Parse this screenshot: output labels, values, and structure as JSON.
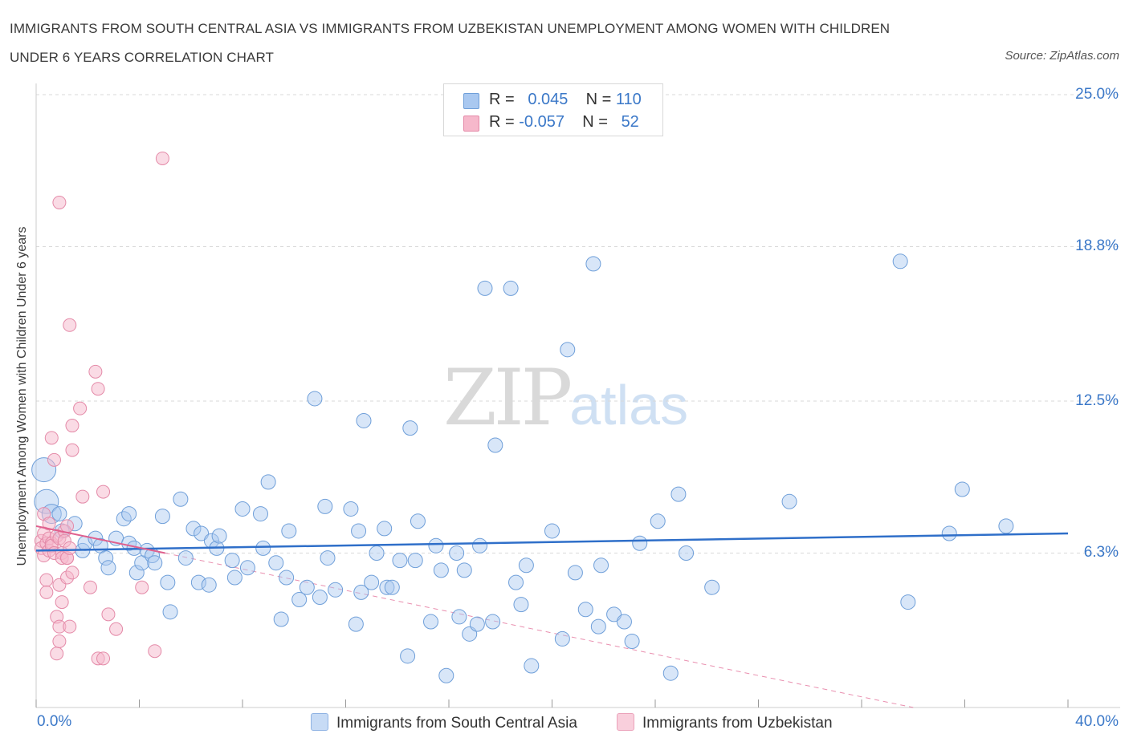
{
  "title": "IMMIGRANTS FROM SOUTH CENTRAL ASIA VS IMMIGRANTS FROM UZBEKISTAN UNEMPLOYMENT AMONG WOMEN WITH CHILDREN UNDER 6 YEARS CORRELATION CHART",
  "source": "Source: ZipAtlas.com",
  "watermark": {
    "zip": "ZIP",
    "atlas": "atlas"
  },
  "legend": {
    "rows": [
      {
        "r_label": "R =",
        "r_value": "0.045",
        "n_label": "N =",
        "n_value": "110",
        "color": "#a9c8f0"
      },
      {
        "r_label": "R =",
        "r_value": "-0.057",
        "n_label": "N =",
        "n_value": "52",
        "color": "#f6b8cb"
      }
    ]
  },
  "colors": {
    "blue_fill": "#a9c8f0",
    "blue_stroke": "#6f9fd9",
    "blue_line": "#2f6fc9",
    "pink_fill": "#f6b8cb",
    "pink_stroke": "#e48aa8",
    "pink_line": "#e0608e",
    "grid": "#d9d9d9",
    "axis_label": "#3b78c8"
  },
  "chart_data": {
    "type": "scatter",
    "title": "IMMIGRANTS FROM SOUTH CENTRAL ASIA VS IMMIGRANTS FROM UZBEKISTAN UNEMPLOYMENT AMONG WOMEN WITH CHILDREN UNDER 6 YEARS CORRELATION CHART",
    "xlabel": "",
    "ylabel": "Unemployment Among Women with Children Under 6 years",
    "xlim": [
      0,
      40
    ],
    "ylim": [
      0,
      25
    ],
    "x_tick_labels": [
      "0.0%",
      "40.0%"
    ],
    "y_ticks": [
      6.3,
      12.5,
      18.8,
      25.0
    ],
    "y_tick_labels": [
      "6.3%",
      "12.5%",
      "18.8%",
      "25.0%"
    ],
    "grid": true,
    "legend_position": "top-center",
    "series": [
      {
        "name": "Immigrants from South Central Asia",
        "R": 0.045,
        "N": 110,
        "trend": {
          "x": [
            0,
            40
          ],
          "y": [
            6.4,
            7.1
          ],
          "style": "solid"
        },
        "points": [
          [
            0.3,
            9.7
          ],
          [
            0.4,
            8.4
          ],
          [
            0.6,
            7.9
          ],
          [
            0.9,
            7.9
          ],
          [
            1.0,
            7.2
          ],
          [
            1.5,
            7.5
          ],
          [
            1.8,
            6.4
          ],
          [
            1.9,
            6.7
          ],
          [
            2.3,
            6.9
          ],
          [
            2.5,
            6.6
          ],
          [
            2.7,
            6.1
          ],
          [
            2.8,
            5.7
          ],
          [
            3.1,
            6.9
          ],
          [
            3.4,
            7.7
          ],
          [
            3.6,
            6.7
          ],
          [
            3.6,
            7.9
          ],
          [
            3.8,
            6.5
          ],
          [
            3.9,
            5.5
          ],
          [
            4.1,
            5.9
          ],
          [
            4.3,
            6.4
          ],
          [
            4.5,
            6.2
          ],
          [
            4.6,
            5.9
          ],
          [
            4.9,
            7.8
          ],
          [
            5.1,
            5.1
          ],
          [
            5.2,
            3.9
          ],
          [
            5.6,
            8.5
          ],
          [
            5.8,
            6.1
          ],
          [
            6.1,
            7.3
          ],
          [
            6.3,
            5.1
          ],
          [
            6.4,
            7.1
          ],
          [
            6.7,
            5.0
          ],
          [
            6.8,
            6.8
          ],
          [
            7.0,
            6.5
          ],
          [
            7.1,
            7.0
          ],
          [
            7.6,
            6.0
          ],
          [
            7.7,
            5.3
          ],
          [
            8.0,
            8.1
          ],
          [
            8.2,
            5.7
          ],
          [
            8.7,
            7.9
          ],
          [
            8.8,
            6.5
          ],
          [
            9.0,
            9.2
          ],
          [
            9.3,
            5.9
          ],
          [
            9.5,
            3.6
          ],
          [
            9.7,
            5.3
          ],
          [
            9.8,
            7.2
          ],
          [
            10.2,
            4.4
          ],
          [
            10.5,
            4.9
          ],
          [
            10.8,
            12.6
          ],
          [
            11.0,
            4.5
          ],
          [
            11.2,
            8.2
          ],
          [
            11.3,
            6.1
          ],
          [
            11.6,
            4.8
          ],
          [
            12.2,
            8.1
          ],
          [
            12.4,
            3.4
          ],
          [
            12.5,
            7.2
          ],
          [
            12.6,
            4.7
          ],
          [
            12.7,
            11.7
          ],
          [
            13.0,
            5.1
          ],
          [
            13.2,
            6.3
          ],
          [
            13.5,
            7.3
          ],
          [
            13.6,
            4.9
          ],
          [
            13.8,
            4.9
          ],
          [
            14.1,
            6.0
          ],
          [
            14.4,
            2.1
          ],
          [
            14.5,
            11.4
          ],
          [
            14.7,
            6.0
          ],
          [
            14.8,
            7.6
          ],
          [
            15.3,
            3.5
          ],
          [
            15.5,
            6.6
          ],
          [
            15.7,
            5.6
          ],
          [
            15.9,
            1.3
          ],
          [
            16.3,
            6.3
          ],
          [
            16.4,
            3.7
          ],
          [
            16.6,
            5.6
          ],
          [
            16.8,
            3.0
          ],
          [
            17.1,
            3.4
          ],
          [
            17.2,
            6.6
          ],
          [
            17.4,
            17.1
          ],
          [
            17.7,
            3.5
          ],
          [
            17.8,
            10.7
          ],
          [
            18.4,
            17.1
          ],
          [
            18.6,
            5.1
          ],
          [
            18.8,
            4.2
          ],
          [
            19.0,
            5.8
          ],
          [
            19.2,
            1.7
          ],
          [
            20.0,
            7.2
          ],
          [
            20.4,
            2.8
          ],
          [
            20.6,
            14.6
          ],
          [
            20.9,
            5.5
          ],
          [
            21.3,
            4.0
          ],
          [
            21.6,
            18.1
          ],
          [
            21.8,
            3.3
          ],
          [
            21.9,
            5.8
          ],
          [
            22.4,
            3.8
          ],
          [
            22.8,
            3.5
          ],
          [
            23.1,
            2.7
          ],
          [
            23.4,
            6.7
          ],
          [
            24.1,
            7.6
          ],
          [
            24.6,
            1.4
          ],
          [
            24.9,
            8.7
          ],
          [
            25.2,
            6.3
          ],
          [
            26.2,
            4.9
          ],
          [
            29.2,
            8.4
          ],
          [
            33.5,
            18.2
          ],
          [
            33.8,
            4.3
          ],
          [
            35.4,
            7.1
          ],
          [
            35.9,
            8.9
          ],
          [
            37.6,
            7.4
          ]
        ]
      },
      {
        "name": "Immigrants from Uzbekistan",
        "R": -0.057,
        "N": 52,
        "trend": {
          "x": [
            0,
            5
          ],
          "y": [
            7.4,
            6.3
          ],
          "style": "solid"
        },
        "trend_extension": {
          "x": [
            5,
            34
          ],
          "y": [
            6.3,
            0
          ],
          "style": "dashed"
        },
        "points": [
          [
            0.2,
            6.8
          ],
          [
            0.2,
            6.5
          ],
          [
            0.3,
            7.1
          ],
          [
            0.3,
            6.2
          ],
          [
            0.3,
            7.9
          ],
          [
            0.4,
            5.2
          ],
          [
            0.4,
            6.7
          ],
          [
            0.4,
            4.7
          ],
          [
            0.5,
            6.9
          ],
          [
            0.5,
            7.5
          ],
          [
            0.5,
            6.4
          ],
          [
            0.6,
            6.7
          ],
          [
            0.6,
            6.6
          ],
          [
            0.6,
            11.0
          ],
          [
            0.7,
            10.1
          ],
          [
            0.7,
            6.3
          ],
          [
            0.8,
            7.0
          ],
          [
            0.8,
            3.7
          ],
          [
            0.8,
            2.2
          ],
          [
            0.9,
            2.7
          ],
          [
            0.9,
            6.9
          ],
          [
            0.9,
            5.0
          ],
          [
            0.9,
            20.6
          ],
          [
            0.9,
            3.3
          ],
          [
            1.0,
            6.3
          ],
          [
            1.0,
            6.1
          ],
          [
            1.0,
            4.3
          ],
          [
            1.1,
            7.2
          ],
          [
            1.1,
            6.8
          ],
          [
            1.2,
            5.3
          ],
          [
            1.2,
            7.4
          ],
          [
            1.2,
            6.1
          ],
          [
            1.2,
            6.1
          ],
          [
            1.3,
            6.5
          ],
          [
            1.3,
            15.6
          ],
          [
            1.3,
            3.3
          ],
          [
            1.4,
            5.5
          ],
          [
            1.4,
            11.5
          ],
          [
            1.4,
            10.5
          ],
          [
            1.7,
            12.2
          ],
          [
            1.8,
            8.6
          ],
          [
            2.1,
            4.9
          ],
          [
            2.3,
            13.7
          ],
          [
            2.4,
            13.0
          ],
          [
            2.4,
            2.0
          ],
          [
            2.6,
            8.8
          ],
          [
            2.6,
            2.0
          ],
          [
            2.8,
            3.8
          ],
          [
            3.1,
            3.2
          ],
          [
            4.1,
            4.9
          ],
          [
            4.6,
            2.3
          ],
          [
            4.9,
            22.4
          ]
        ]
      }
    ]
  },
  "bottom_legend": [
    {
      "label": "Immigrants from South Central Asia",
      "color": "#a9c8f0"
    },
    {
      "label": "Immigrants from Uzbekistan",
      "color": "#f6b8cb"
    }
  ]
}
